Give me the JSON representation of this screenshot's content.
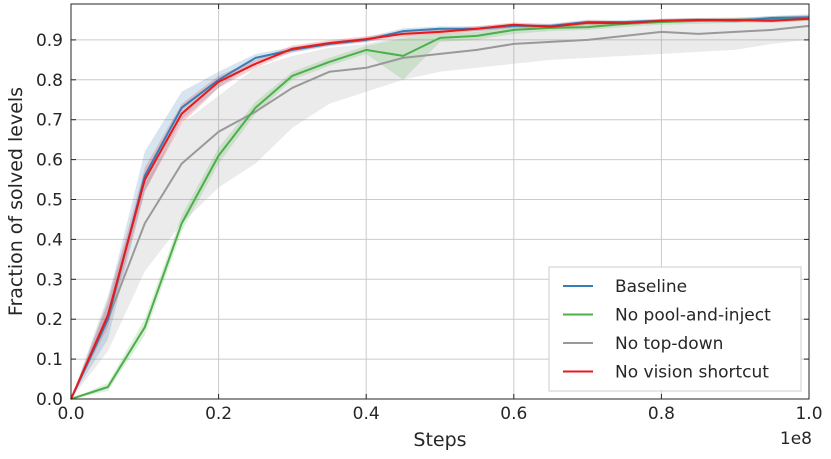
{
  "chart_data": {
    "type": "line",
    "title": "",
    "xlabel": "Steps",
    "ylabel": "Fraction of solved levels",
    "x_scale_label": "1e8",
    "xlim": [
      0.0,
      1.0
    ],
    "ylim": [
      0.0,
      0.99
    ],
    "x_ticks": [
      0.0,
      0.2,
      0.4,
      0.6,
      0.8,
      1.0
    ],
    "x_tick_labels": [
      "0.0",
      "0.2",
      "0.4",
      "0.6",
      "0.8",
      "1.0"
    ],
    "y_ticks": [
      0.0,
      0.1,
      0.2,
      0.3,
      0.4,
      0.5,
      0.6,
      0.7,
      0.8,
      0.9
    ],
    "y_tick_labels": [
      "0.0",
      "0.1",
      "0.2",
      "0.3",
      "0.4",
      "0.5",
      "0.6",
      "0.7",
      "0.8",
      "0.9"
    ],
    "grid": true,
    "legend_position": "bottom-right",
    "x": [
      0.0,
      0.05,
      0.1,
      0.15,
      0.2,
      0.25,
      0.3,
      0.35,
      0.4,
      0.45,
      0.5,
      0.55,
      0.6,
      0.65,
      0.7,
      0.75,
      0.8,
      0.85,
      0.9,
      0.95,
      1.0
    ],
    "series": [
      {
        "name": "No top-down",
        "color": "#999999",
        "values": [
          0.0,
          0.2,
          0.44,
          0.59,
          0.67,
          0.72,
          0.78,
          0.82,
          0.83,
          0.855,
          0.865,
          0.875,
          0.89,
          0.895,
          0.9,
          0.91,
          0.92,
          0.915,
          0.92,
          0.925,
          0.935
        ],
        "lower": [
          0.0,
          0.12,
          0.32,
          0.44,
          0.53,
          0.59,
          0.68,
          0.74,
          0.77,
          0.8,
          0.82,
          0.83,
          0.84,
          0.85,
          0.855,
          0.86,
          0.865,
          0.87,
          0.875,
          0.89,
          0.9
        ],
        "upper": [
          0.0,
          0.26,
          0.54,
          0.69,
          0.76,
          0.83,
          0.86,
          0.88,
          0.89,
          0.91,
          0.93,
          0.93,
          0.94,
          0.935,
          0.945,
          0.945,
          0.95,
          0.95,
          0.955,
          0.96,
          0.965
        ]
      },
      {
        "name": "No pool-and-inject",
        "color": "#4daf4a",
        "values": [
          0.0,
          0.03,
          0.18,
          0.44,
          0.61,
          0.73,
          0.81,
          0.845,
          0.875,
          0.86,
          0.905,
          0.91,
          0.925,
          0.93,
          0.932,
          0.94,
          0.945,
          0.948,
          0.95,
          0.952,
          0.955
        ],
        "lower": [
          0.0,
          0.02,
          0.16,
          0.42,
          0.59,
          0.715,
          0.8,
          0.835,
          0.865,
          0.8,
          0.895,
          0.9,
          0.915,
          0.922,
          0.925,
          0.932,
          0.938,
          0.94,
          0.943,
          0.945,
          0.948
        ],
        "upper": [
          0.0,
          0.04,
          0.2,
          0.46,
          0.63,
          0.745,
          0.82,
          0.855,
          0.885,
          0.905,
          0.915,
          0.92,
          0.935,
          0.938,
          0.94,
          0.948,
          0.952,
          0.955,
          0.957,
          0.959,
          0.962
        ]
      },
      {
        "name": "Baseline",
        "color": "#377eb8",
        "values": [
          0.0,
          0.2,
          0.56,
          0.73,
          0.8,
          0.855,
          0.875,
          0.89,
          0.9,
          0.922,
          0.928,
          0.928,
          0.935,
          0.935,
          0.945,
          0.945,
          0.948,
          0.95,
          0.948,
          0.955,
          0.957
        ],
        "lower": [
          0.0,
          0.15,
          0.52,
          0.7,
          0.78,
          0.845,
          0.868,
          0.884,
          0.894,
          0.915,
          0.922,
          0.922,
          0.929,
          0.929,
          0.939,
          0.94,
          0.943,
          0.945,
          0.943,
          0.95,
          0.952
        ],
        "upper": [
          0.0,
          0.25,
          0.62,
          0.77,
          0.82,
          0.865,
          0.882,
          0.896,
          0.906,
          0.929,
          0.934,
          0.934,
          0.941,
          0.941,
          0.951,
          0.95,
          0.953,
          0.955,
          0.953,
          0.96,
          0.962
        ]
      },
      {
        "name": "No vision shortcut",
        "color": "#e41a1c",
        "values": [
          0.0,
          0.21,
          0.55,
          0.715,
          0.795,
          0.84,
          0.878,
          0.892,
          0.902,
          0.915,
          0.92,
          0.928,
          0.938,
          0.933,
          0.943,
          0.942,
          0.948,
          0.95,
          0.95,
          0.948,
          0.953
        ],
        "lower": [
          0.0,
          0.18,
          0.52,
          0.69,
          0.78,
          0.83,
          0.87,
          0.885,
          0.895,
          0.908,
          0.914,
          0.922,
          0.932,
          0.927,
          0.937,
          0.937,
          0.943,
          0.945,
          0.945,
          0.943,
          0.948
        ],
        "upper": [
          0.0,
          0.24,
          0.58,
          0.74,
          0.81,
          0.85,
          0.886,
          0.899,
          0.909,
          0.922,
          0.926,
          0.934,
          0.944,
          0.939,
          0.949,
          0.947,
          0.953,
          0.955,
          0.955,
          0.953,
          0.958
        ]
      }
    ],
    "legend_entries": [
      {
        "name": "Baseline",
        "color": "#377eb8"
      },
      {
        "name": "No pool-and-inject",
        "color": "#4daf4a"
      },
      {
        "name": "No top-down",
        "color": "#999999"
      },
      {
        "name": "No vision shortcut",
        "color": "#e41a1c"
      }
    ]
  }
}
